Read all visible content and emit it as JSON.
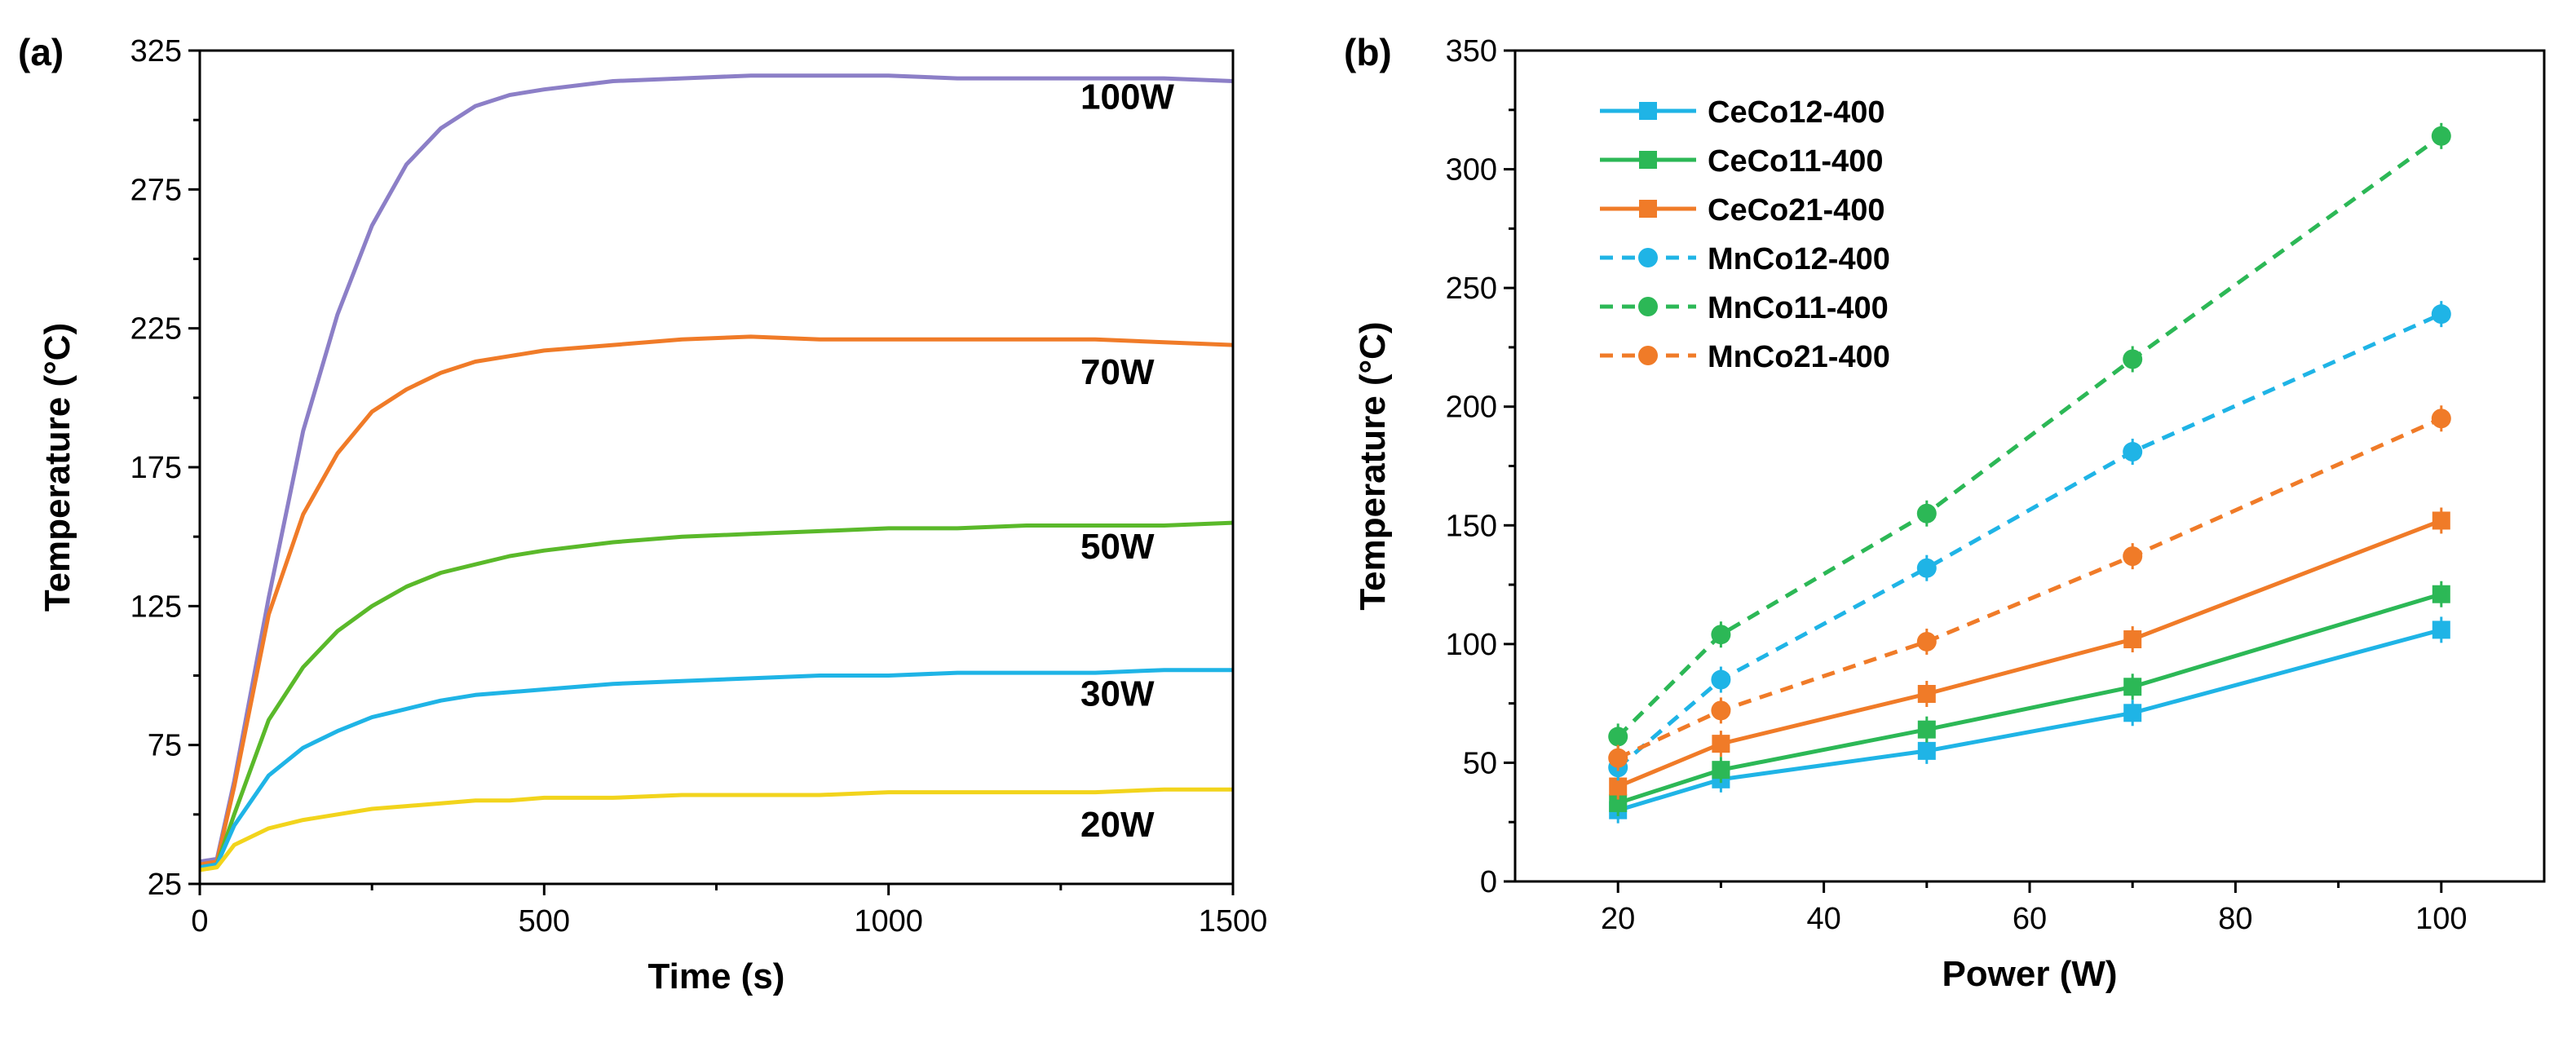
{
  "chart_data": [
    {
      "panel": "(a)",
      "type": "line",
      "xlabel": "Time (s)",
      "ylabel": "Temperature (°C)",
      "xlim": [
        0,
        1500
      ],
      "ylim": [
        25,
        325
      ],
      "xticks": [
        0,
        500,
        1000,
        1500
      ],
      "yticks": [
        25,
        75,
        125,
        175,
        225,
        275,
        325
      ],
      "grid": false,
      "series": [
        {
          "name": "100W",
          "label": "100W",
          "color": "#8c7fc7",
          "x": [
            0,
            25,
            50,
            100,
            150,
            200,
            250,
            300,
            350,
            400,
            450,
            500,
            600,
            700,
            800,
            900,
            1000,
            1100,
            1200,
            1300,
            1400,
            1500
          ],
          "y": [
            33,
            34,
            62,
            128,
            188,
            230,
            262,
            284,
            297,
            305,
            309,
            311,
            314,
            315,
            316,
            316,
            316,
            315,
            315,
            315,
            315,
            314
          ]
        },
        {
          "name": "70W",
          "label": "70W",
          "color": "#f07b28",
          "x": [
            0,
            25,
            50,
            100,
            150,
            200,
            250,
            300,
            350,
            400,
            450,
            500,
            600,
            700,
            800,
            900,
            1000,
            1100,
            1200,
            1300,
            1400,
            1500
          ],
          "y": [
            32,
            33,
            60,
            122,
            158,
            180,
            195,
            203,
            209,
            213,
            215,
            217,
            219,
            221,
            222,
            221,
            221,
            221,
            221,
            221,
            220,
            219
          ]
        },
        {
          "name": "50W",
          "label": "50W",
          "color": "#5ab92a",
          "x": [
            0,
            25,
            50,
            100,
            150,
            200,
            250,
            300,
            350,
            400,
            450,
            500,
            600,
            700,
            800,
            900,
            1000,
            1100,
            1200,
            1300,
            1400,
            1500
          ],
          "y": [
            31,
            32,
            50,
            84,
            103,
            116,
            125,
            132,
            137,
            140,
            143,
            145,
            148,
            150,
            151,
            152,
            153,
            153,
            154,
            154,
            154,
            155
          ]
        },
        {
          "name": "30W",
          "label": "30W",
          "color": "#1fb4e6",
          "x": [
            0,
            25,
            50,
            100,
            150,
            200,
            250,
            300,
            350,
            400,
            450,
            500,
            600,
            700,
            800,
            900,
            1000,
            1100,
            1200,
            1300,
            1400,
            1500
          ],
          "y": [
            31,
            32,
            46,
            64,
            74,
            80,
            85,
            88,
            91,
            93,
            94,
            95,
            97,
            98,
            99,
            100,
            100,
            101,
            101,
            101,
            102,
            102
          ]
        },
        {
          "name": "20W",
          "label": "20W",
          "color": "#f2d41c",
          "x": [
            0,
            25,
            50,
            100,
            150,
            200,
            250,
            300,
            350,
            400,
            450,
            500,
            600,
            700,
            800,
            900,
            1000,
            1100,
            1200,
            1300,
            1400,
            1500
          ],
          "y": [
            30,
            31,
            39,
            45,
            48,
            50,
            52,
            53,
            54,
            55,
            55,
            56,
            56,
            57,
            57,
            57,
            58,
            58,
            58,
            58,
            59,
            59
          ]
        }
      ]
    },
    {
      "panel": "(b)",
      "type": "line",
      "xlabel": "Power (W)",
      "ylabel": "Temperature (°C)",
      "xlim": [
        10,
        110
      ],
      "ylim": [
        0,
        350
      ],
      "xticks": [
        20,
        40,
        60,
        80,
        100
      ],
      "yticks": [
        0,
        50,
        100,
        150,
        200,
        250,
        300,
        350
      ],
      "grid": false,
      "legend_position": "top-left",
      "x": [
        20,
        30,
        50,
        70,
        100
      ],
      "series": [
        {
          "name": "CeCo12-400",
          "color": "#1fb4e6",
          "style": "solid",
          "marker": "square",
          "values": [
            30,
            43,
            55,
            71,
            106
          ]
        },
        {
          "name": "CeCo11-400",
          "color": "#2cb856",
          "style": "solid",
          "marker": "square",
          "values": [
            33,
            47,
            64,
            82,
            121
          ]
        },
        {
          "name": "CeCo21-400",
          "color": "#f07b28",
          "style": "solid",
          "marker": "square",
          "values": [
            40,
            58,
            79,
            102,
            152
          ]
        },
        {
          "name": "MnCo12-400",
          "color": "#1fb4e6",
          "style": "dashed",
          "marker": "circle",
          "values": [
            48,
            85,
            132,
            181,
            239
          ]
        },
        {
          "name": "MnCo11-400",
          "color": "#2cb856",
          "style": "dashed",
          "marker": "circle",
          "values": [
            61,
            104,
            155,
            220,
            314
          ]
        },
        {
          "name": "MnCo21-400",
          "color": "#f07b28",
          "style": "dashed",
          "marker": "circle",
          "values": [
            52,
            72,
            101,
            137,
            195
          ]
        }
      ]
    }
  ]
}
